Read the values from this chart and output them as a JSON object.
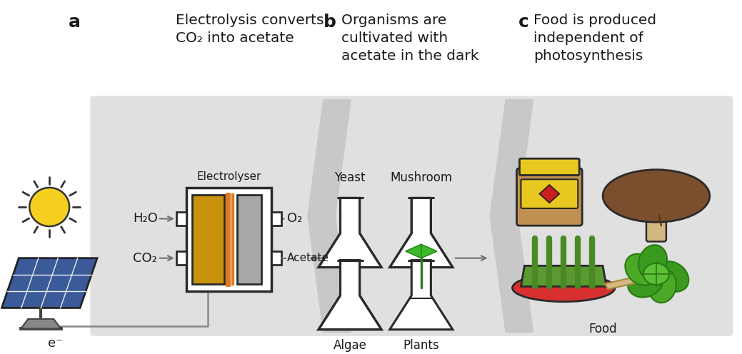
{
  "bg_color": "#ffffff",
  "panel_bg": "#e0e0e0",
  "zigzag_color": "#c8c8c8",
  "section_labels": [
    "a",
    "b",
    "c"
  ],
  "titles": [
    "Electrolysis converts\nCO₂ into acetate",
    "Organisms are\ncultivated with\nacetate in the dark",
    "Food is produced\nindependent of\nphotosynthesis"
  ],
  "yellow_electrode": "#C8920A",
  "gray_electrode": "#A8A8A8",
  "orange_line": "#E07820",
  "flask_brown": "#BC9070",
  "flask_green": "#38A030",
  "flask_outline": "#2A2A2A",
  "mushroom_cap": "#7B4F2E",
  "mushroom_stem": "#D4B882",
  "jar_yellow": "#E8C820",
  "jar_body": "#C09050",
  "jar_lid_color": "#D4A010",
  "jar_red": "#CC2020",
  "pan_red": "#D83030",
  "pan_green": "#5A9A30",
  "lettuce_dark": "#2E8020",
  "lettuce_light": "#4AAA30",
  "solar_blue": "#3A5A9A",
  "arrow_color": "#707070",
  "text_color": "#1A1A1A",
  "sun_yellow": "#F5D020",
  "wire_color": "#888888"
}
